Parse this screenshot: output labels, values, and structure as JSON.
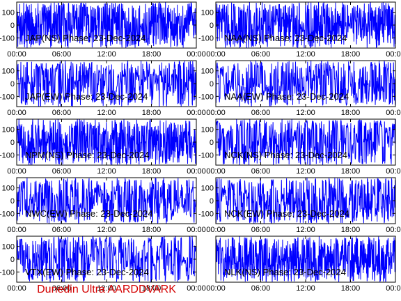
{
  "footer": "Dunedin Ultra AARDDVARK",
  "colors": {
    "trace": "#0000ff",
    "footer": "#d40000",
    "axis": "#000000"
  },
  "chart_data": [
    {
      "type": "line",
      "title": "JAP(NS) Phase: 23-Dec-2024",
      "xlim": [
        "00:00",
        "24:00"
      ],
      "ylim": [
        -180,
        180
      ],
      "yticks": [
        100,
        0,
        -100
      ],
      "xticks": [
        "00:00",
        "06:00",
        "12:00",
        "18:00",
        "00:00"
      ],
      "series": [
        {
          "activity": 1.0,
          "smooth": 0.0,
          "level": 0
        }
      ],
      "grid": false
    },
    {
      "type": "line",
      "title": "NAA(NS) Phase: 23-Dec-2024",
      "xlim": [
        "00:00",
        "24:00"
      ],
      "ylim": [
        -180,
        180
      ],
      "yticks": [
        100,
        0,
        -100
      ],
      "xticks": [
        "00:00",
        "06:00",
        "12:00",
        "18:00",
        "00:00"
      ],
      "series": [
        {
          "activity": 1.0,
          "smooth": 0.0,
          "level": 0
        }
      ],
      "grid": false
    },
    {
      "type": "line",
      "title": "JAP(EW) Phase: 23-Dec-2024",
      "xlim": [
        "00:00",
        "24:00"
      ],
      "ylim": [
        -180,
        180
      ],
      "yticks": [
        100,
        0,
        -100
      ],
      "xticks": [
        "00:00",
        "06:00",
        "12:00",
        "18:00",
        "00:00"
      ],
      "series": [
        {
          "activity": 0.55,
          "smooth": 0.35,
          "level": 30
        }
      ],
      "grid": false
    },
    {
      "type": "line",
      "title": "NAA(EW) Phase: 23-Dec-2024",
      "xlim": [
        "00:00",
        "24:00"
      ],
      "ylim": [
        -180,
        180
      ],
      "yticks": [
        100,
        0,
        -100
      ],
      "xticks": [
        "00:00",
        "06:00",
        "12:00",
        "18:00",
        "00:00"
      ],
      "series": [
        {
          "activity": 0.6,
          "smooth": 0.35,
          "level": 20
        }
      ],
      "grid": false
    },
    {
      "type": "line",
      "title": "NPM(NS) Phase: 23-Dec-2024",
      "xlim": [
        "00:00",
        "24:00"
      ],
      "ylim": [
        -180,
        180
      ],
      "yticks": [
        100,
        0,
        -100
      ],
      "xticks": [
        "00:00",
        "06:00",
        "12:00",
        "18:00",
        "00:00"
      ],
      "series": [
        {
          "activity": 1.0,
          "smooth": 0.0,
          "level": 0
        }
      ],
      "grid": false
    },
    {
      "type": "line",
      "title": "NCK(NS) Phase: 23-Dec-2024",
      "xlim": [
        "00:00",
        "24:00"
      ],
      "ylim": [
        -180,
        180
      ],
      "yticks": [
        100,
        0,
        -100
      ],
      "xticks": [
        "00:00",
        "06:00",
        "12:00",
        "18:00",
        "00:00"
      ],
      "series": [
        {
          "activity": 0.6,
          "smooth": 0.4,
          "level": 0
        }
      ],
      "grid": false
    },
    {
      "type": "line",
      "title": "NWC(EW) Phase: 23-Dec-2024",
      "xlim": [
        "00:00",
        "24:00"
      ],
      "ylim": [
        -180,
        180
      ],
      "yticks": [
        100,
        0,
        -100
      ],
      "xticks": [
        "00:00",
        "06:00",
        "12:00",
        "18:00",
        "00:00"
      ],
      "series": [
        {
          "activity": 0.6,
          "smooth": 0.35,
          "level": 10
        }
      ],
      "grid": false
    },
    {
      "type": "line",
      "title": "NCK(EW) Phase: 23-Dec-2024",
      "xlim": [
        "00:00",
        "24:00"
      ],
      "ylim": [
        -180,
        180
      ],
      "yticks": [
        100,
        0,
        -100
      ],
      "xticks": [
        "00:00",
        "06:00",
        "12:00",
        "18:00",
        "00:00"
      ],
      "series": [
        {
          "activity": 0.6,
          "smooth": 0.4,
          "level": 0
        }
      ],
      "grid": false
    },
    {
      "type": "line",
      "title": "VTX(EW) Phase: 23-Dec-2024",
      "xlim": [
        "00:00",
        "24:00"
      ],
      "ylim": [
        -180,
        180
      ],
      "yticks": [
        100,
        0,
        -100
      ],
      "xticks": [
        "00:00",
        "06:00",
        "12:00",
        "18:00",
        "00:00"
      ],
      "series": [
        {
          "activity": 0.55,
          "smooth": 0.3,
          "level": 20
        }
      ],
      "grid": false
    },
    {
      "type": "line",
      "title": "NLK(NS) Phase: 23-Dec-2024",
      "xlim": [
        "00:00",
        "24:00"
      ],
      "ylim": [
        -180,
        180
      ],
      "yticks": [],
      "xticks": [
        "00:00",
        "06:00",
        "12:00",
        "18:00",
        "00:00"
      ],
      "series": [
        {
          "activity": 1.0,
          "smooth": 0.0,
          "level": 0
        }
      ],
      "grid": false
    }
  ]
}
